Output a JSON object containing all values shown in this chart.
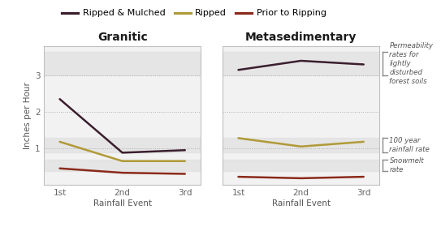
{
  "granitic": {
    "ripped_mulched": [
      2.35,
      0.88,
      0.95
    ],
    "ripped": [
      1.18,
      0.65,
      0.65
    ],
    "prior": [
      0.45,
      0.33,
      0.3
    ]
  },
  "metasedimentary": {
    "ripped_mulched": [
      3.15,
      3.4,
      3.3
    ],
    "ripped": [
      1.28,
      1.05,
      1.18
    ],
    "prior": [
      0.22,
      0.18,
      0.22
    ]
  },
  "x_labels": [
    "1st",
    "2nd",
    "3rd"
  ],
  "xlabel": "Rainfall Event",
  "ylabel": "Inches per Hour",
  "title_granitic": "Granitic",
  "title_metasedimentary": "Metasedimentary",
  "legend_labels": [
    "Ripped & Mulched",
    "Ripped",
    "Prior to Ripping"
  ],
  "colors": {
    "ripped_mulched": "#3b1e2e",
    "ripped": "#b09a38",
    "prior": "#8b2a1a"
  },
  "ylim": [
    0,
    3.8
  ],
  "yticks": [
    1,
    2,
    3
  ],
  "hspan_permeability": [
    3.0,
    3.65
  ],
  "hspan_100yr": [
    0.88,
    1.3
  ],
  "hspan_snowmelt": [
    0.38,
    0.68
  ],
  "bg_band": "#e0e0e0",
  "annotation_permeability": "Permeability\nrates for\nlightly\ndisturbed\nforest soils",
  "annotation_100yr": "100 year\nrainfall rate",
  "annotation_snowmelt": "Snowmelt\nrate",
  "figure_bg": "#ffffff",
  "axes_bg": "#f2f2f2",
  "line_width": 1.8,
  "bracket_color": "#888888"
}
